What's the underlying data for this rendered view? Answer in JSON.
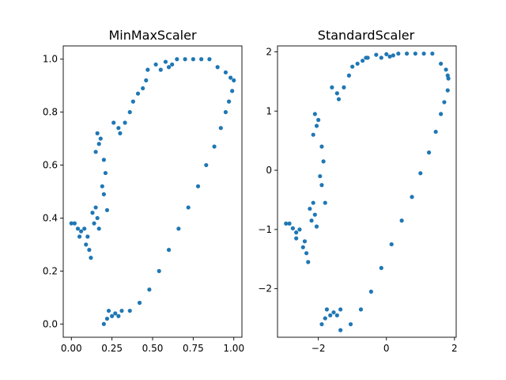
{
  "figure": {
    "background": "#ffffff",
    "marker_color": "#1f77b4"
  },
  "chart_data": [
    {
      "type": "scatter",
      "title": "MinMaxScaler",
      "xlabel": "",
      "ylabel": "",
      "xlim": [
        -0.05,
        1.05
      ],
      "ylim": [
        -0.05,
        1.05
      ],
      "xticks": [
        0.0,
        0.25,
        0.5,
        0.75,
        1.0
      ],
      "xtick_labels": [
        "0.00",
        "0.25",
        "0.50",
        "0.75",
        "1.00"
      ],
      "yticks": [
        0.0,
        0.2,
        0.4,
        0.6,
        0.8,
        1.0
      ],
      "ytick_labels": [
        "0.0",
        "0.2",
        "0.4",
        "0.6",
        "0.8",
        "1.0"
      ],
      "grid": false,
      "color": "#1f77b4",
      "points": [
        [
          0.0,
          0.38
        ],
        [
          0.02,
          0.38
        ],
        [
          0.04,
          0.36
        ],
        [
          0.06,
          0.35
        ],
        [
          0.08,
          0.36
        ],
        [
          0.05,
          0.33
        ],
        [
          0.09,
          0.3
        ],
        [
          0.11,
          0.28
        ],
        [
          0.12,
          0.25
        ],
        [
          0.1,
          0.33
        ],
        [
          0.13,
          0.42
        ],
        [
          0.14,
          0.38
        ],
        [
          0.15,
          0.44
        ],
        [
          0.16,
          0.4
        ],
        [
          0.17,
          0.36
        ],
        [
          0.15,
          0.65
        ],
        [
          0.17,
          0.68
        ],
        [
          0.18,
          0.7
        ],
        [
          0.16,
          0.72
        ],
        [
          0.2,
          0.62
        ],
        [
          0.21,
          0.57
        ],
        [
          0.19,
          0.52
        ],
        [
          0.2,
          0.49
        ],
        [
          0.22,
          0.43
        ],
        [
          0.2,
          0.0
        ],
        [
          0.22,
          0.02
        ],
        [
          0.23,
          0.05
        ],
        [
          0.25,
          0.03
        ],
        [
          0.27,
          0.04
        ],
        [
          0.29,
          0.03
        ],
        [
          0.31,
          0.05
        ],
        [
          0.26,
          0.76
        ],
        [
          0.29,
          0.74
        ],
        [
          0.3,
          0.72
        ],
        [
          0.33,
          0.76
        ],
        [
          0.36,
          0.8
        ],
        [
          0.38,
          0.84
        ],
        [
          0.41,
          0.87
        ],
        [
          0.44,
          0.89
        ],
        [
          0.46,
          0.92
        ],
        [
          0.47,
          0.96
        ],
        [
          0.52,
          0.98
        ],
        [
          0.55,
          0.96
        ],
        [
          0.58,
          0.99
        ],
        [
          0.6,
          0.97
        ],
        [
          0.62,
          0.98
        ],
        [
          0.65,
          1.0
        ],
        [
          0.7,
          1.0
        ],
        [
          0.75,
          1.0
        ],
        [
          0.8,
          1.0
        ],
        [
          0.85,
          1.0
        ],
        [
          0.9,
          0.97
        ],
        [
          0.95,
          0.95
        ],
        [
          0.98,
          0.93
        ],
        [
          1.0,
          0.92
        ],
        [
          0.99,
          0.88
        ],
        [
          0.97,
          0.84
        ],
        [
          0.95,
          0.8
        ],
        [
          0.92,
          0.74
        ],
        [
          0.88,
          0.67
        ],
        [
          0.83,
          0.6
        ],
        [
          0.78,
          0.52
        ],
        [
          0.72,
          0.44
        ],
        [
          0.66,
          0.36
        ],
        [
          0.6,
          0.28
        ],
        [
          0.54,
          0.2
        ],
        [
          0.48,
          0.13
        ],
        [
          0.42,
          0.08
        ],
        [
          0.36,
          0.05
        ]
      ]
    },
    {
      "type": "scatter",
      "title": "StandardScaler",
      "xlabel": "",
      "ylabel": "",
      "xlim": [
        -3.2,
        2.05
      ],
      "ylim": [
        -2.82,
        2.1
      ],
      "xticks": [
        -2,
        0,
        2
      ],
      "xtick_labels": [
        "−2",
        "0",
        "2"
      ],
      "yticks": [
        -2,
        -1,
        0,
        1,
        2
      ],
      "ytick_labels": [
        "−2",
        "−1",
        "0",
        "1",
        "2"
      ],
      "grid": false,
      "color": "#1f77b4",
      "points": [
        [
          -2.95,
          -0.9
        ],
        [
          -2.85,
          -0.9
        ],
        [
          -2.75,
          -0.98
        ],
        [
          -2.65,
          -1.05
        ],
        [
          -2.55,
          -1.0
        ],
        [
          -2.65,
          -1.15
        ],
        [
          -2.45,
          -1.3
        ],
        [
          -2.35,
          -1.4
        ],
        [
          -2.3,
          -1.55
        ],
        [
          -2.4,
          -1.2
        ],
        [
          -2.25,
          -0.65
        ],
        [
          -2.2,
          -0.85
        ],
        [
          -2.15,
          -0.55
        ],
        [
          -2.1,
          -0.75
        ],
        [
          -2.05,
          -0.95
        ],
        [
          -2.15,
          0.6
        ],
        [
          -2.05,
          0.75
        ],
        [
          -2.0,
          0.85
        ],
        [
          -2.1,
          0.95
        ],
        [
          -1.9,
          0.4
        ],
        [
          -1.85,
          0.15
        ],
        [
          -1.95,
          -0.1
        ],
        [
          -1.9,
          -0.25
        ],
        [
          -1.8,
          -0.55
        ],
        [
          -1.9,
          -2.6
        ],
        [
          -1.8,
          -2.5
        ],
        [
          -1.75,
          -2.35
        ],
        [
          -1.65,
          -2.45
        ],
        [
          -1.55,
          -2.4
        ],
        [
          -1.45,
          -2.45
        ],
        [
          -1.35,
          -2.35
        ],
        [
          -1.6,
          1.4
        ],
        [
          -1.45,
          1.3
        ],
        [
          -1.4,
          1.2
        ],
        [
          -1.25,
          1.4
        ],
        [
          -1.1,
          1.6
        ],
        [
          -1.0,
          1.75
        ],
        [
          -0.85,
          1.8
        ],
        [
          -0.7,
          1.85
        ],
        [
          -0.6,
          1.9
        ],
        [
          -0.55,
          1.9
        ],
        [
          -0.3,
          1.95
        ],
        [
          -0.15,
          1.9
        ],
        [
          0.0,
          1.96
        ],
        [
          0.1,
          1.92
        ],
        [
          0.2,
          1.94
        ],
        [
          0.35,
          1.97
        ],
        [
          0.6,
          1.97
        ],
        [
          0.85,
          1.97
        ],
        [
          1.1,
          1.97
        ],
        [
          1.35,
          1.97
        ],
        [
          1.6,
          1.8
        ],
        [
          1.75,
          1.7
        ],
        [
          1.8,
          1.6
        ],
        [
          1.82,
          1.55
        ],
        [
          1.8,
          1.35
        ],
        [
          1.7,
          1.15
        ],
        [
          1.6,
          0.95
        ],
        [
          1.45,
          0.65
        ],
        [
          1.25,
          0.3
        ],
        [
          1.0,
          -0.05
        ],
        [
          0.75,
          -0.45
        ],
        [
          0.45,
          -0.85
        ],
        [
          0.15,
          -1.25
        ],
        [
          -0.15,
          -1.65
        ],
        [
          -0.45,
          -2.05
        ],
        [
          -0.75,
          -2.35
        ],
        [
          -1.05,
          -2.6
        ],
        [
          -1.35,
          -2.7
        ]
      ]
    }
  ]
}
